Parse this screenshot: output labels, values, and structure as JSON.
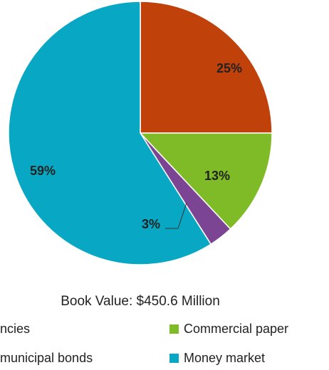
{
  "chart_data": {
    "type": "pie",
    "title": "Book Value: $450.6  Million",
    "categories": [
      "ncies",
      "Commercial paper",
      "municipal bonds",
      "Money market"
    ],
    "values": [
      25,
      13,
      3,
      59
    ],
    "value_labels": [
      "25%",
      "13%",
      "3%",
      "59%"
    ],
    "colors": [
      "#c0410a",
      "#7fba27",
      "#7b4594",
      "#08a8c4"
    ]
  }
}
